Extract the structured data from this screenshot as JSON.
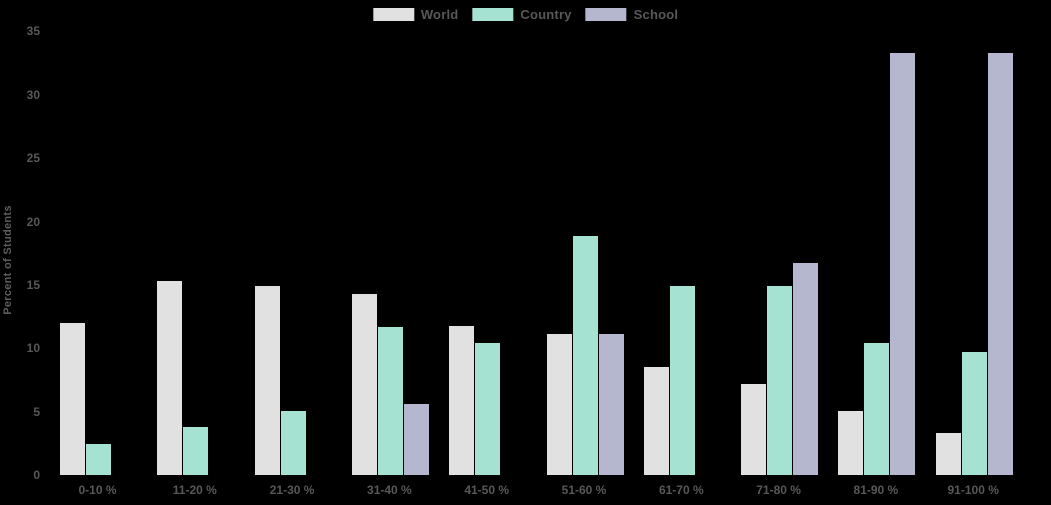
{
  "chart_data": {
    "type": "bar",
    "title": "",
    "xlabel": "",
    "ylabel": "Percent of Students",
    "ylim": [
      0,
      35
    ],
    "yticks": [
      0,
      5,
      10,
      15,
      20,
      25,
      30,
      35
    ],
    "grid": false,
    "legend_position": "top-center",
    "background_color": "#000000",
    "text_color": "#58585a",
    "categories": [
      "0-10 %",
      "11-20 %",
      "21-30 %",
      "31-40 %",
      "41-50 %",
      "51-60 %",
      "61-70 %",
      "71-80 %",
      "81-90 %",
      "91-100 %"
    ],
    "series": [
      {
        "name": "World",
        "color": "#e1e1e1",
        "values": [
          12.0,
          15.3,
          14.9,
          14.3,
          11.8,
          11.1,
          8.5,
          7.2,
          5.1,
          3.3
        ]
      },
      {
        "name": "Country",
        "color": "#a6e2d2",
        "values": [
          2.5,
          3.8,
          5.1,
          11.7,
          10.4,
          18.9,
          14.9,
          14.9,
          10.4,
          9.7
        ]
      },
      {
        "name": "School",
        "color": "#b5b7ce",
        "values": [
          0,
          0,
          0,
          5.6,
          0,
          11.1,
          0,
          16.7,
          33.3,
          33.3
        ]
      }
    ]
  }
}
